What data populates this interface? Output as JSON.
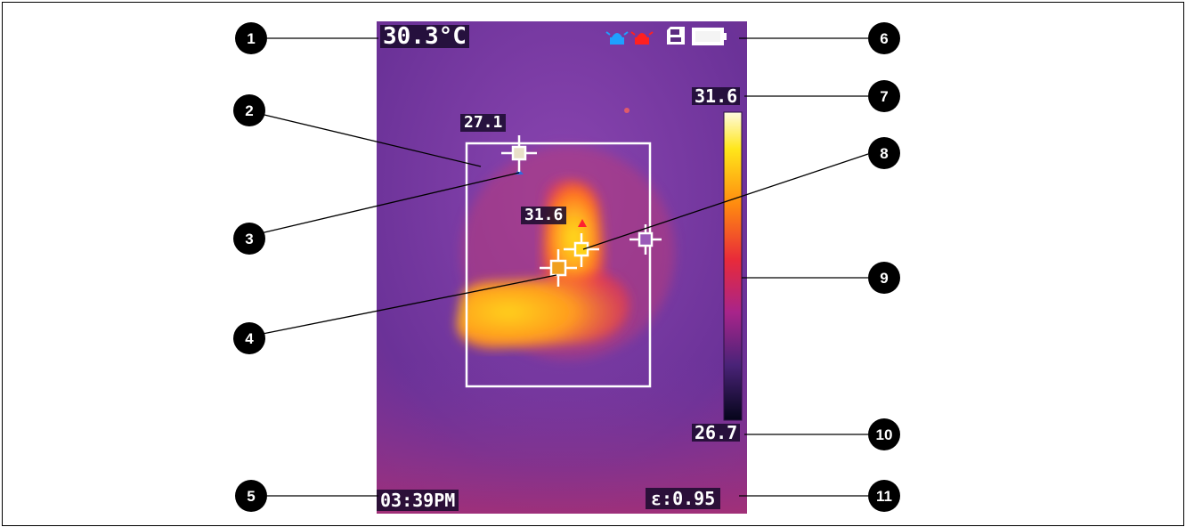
{
  "screen": {
    "center_temperature": "30.3°C",
    "max_temperature": "31.6",
    "min_temperature": "26.7",
    "time": "03:39PM",
    "emissivity": "ε:0.95",
    "cold_point_label": "27.1",
    "hot_point_label": "31.6"
  },
  "callouts": [
    "1",
    "2",
    "3",
    "4",
    "5",
    "6",
    "7",
    "8",
    "9",
    "10",
    "11"
  ],
  "colors": {
    "background_purple": "#7a3aa6",
    "hot": "#ffd21a",
    "cold_marker": "#2f6be0",
    "alarm_blue": "#1ea0ff",
    "alarm_red": "#ff2020"
  },
  "icons": [
    "blue-alarm-icon",
    "red-alarm-icon",
    "sd-card-icon",
    "battery-icon",
    "crosshair-icon"
  ]
}
